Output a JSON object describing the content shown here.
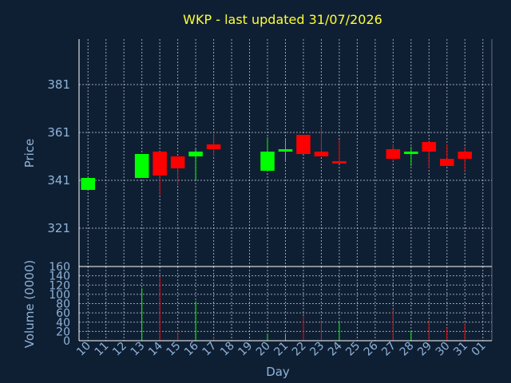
{
  "chart_data": [
    {
      "type": "candlestick",
      "title": "WKP - last updated 31/07/2026",
      "xlabel": "Day",
      "ylabel": "Price",
      "x_ticks": [
        "10",
        "11",
        "12",
        "13",
        "14",
        "15",
        "16",
        "17",
        "18",
        "19",
        "20",
        "21",
        "22",
        "23",
        "24",
        "25",
        "26",
        "27",
        "28",
        "29",
        "30",
        "31",
        "01"
      ],
      "y_ticks": [
        321,
        341,
        361,
        381
      ],
      "ylim": [
        305,
        400
      ],
      "grid": true,
      "colors": {
        "up": "#00ff00",
        "down": "#ff0000"
      },
      "candles": [
        {
          "day": "10",
          "open": 337,
          "close": 342,
          "high": 342,
          "low": 337
        },
        {
          "day": "13",
          "open": 342,
          "close": 352,
          "high": 352,
          "low": 342
        },
        {
          "day": "14",
          "open": 353,
          "close": 343,
          "high": 353,
          "low": 335
        },
        {
          "day": "15",
          "open": 351,
          "close": 346,
          "high": 351,
          "low": 339
        },
        {
          "day": "16",
          "open": 351,
          "close": 353,
          "high": 354,
          "low": 341
        },
        {
          "day": "17",
          "open": 356,
          "close": 354,
          "high": 361,
          "low": 351
        },
        {
          "day": "20",
          "open": 345,
          "close": 353,
          "high": 359,
          "low": 345
        },
        {
          "day": "21",
          "open": 353,
          "close": 354,
          "high": 358,
          "low": 349
        },
        {
          "day": "22",
          "open": 360,
          "close": 352,
          "high": 360,
          "low": 352
        },
        {
          "day": "23",
          "open": 353,
          "close": 351,
          "high": 363,
          "low": 351
        },
        {
          "day": "24",
          "open": 349,
          "close": 348,
          "high": 358,
          "low": 348
        },
        {
          "day": "27",
          "open": 354,
          "close": 350,
          "high": 356,
          "low": 349
        },
        {
          "day": "28",
          "open": 352,
          "close": 353,
          "high": 355,
          "low": 347
        },
        {
          "day": "29",
          "open": 357,
          "close": 353,
          "high": 357,
          "low": 346
        },
        {
          "day": "30",
          "open": 350,
          "close": 347,
          "high": 356,
          "low": 347
        },
        {
          "day": "31",
          "open": 353,
          "close": 350,
          "high": 355,
          "low": 345
        }
      ]
    },
    {
      "type": "bar",
      "xlabel": "Day",
      "ylabel": "Volume (0000)",
      "y_ticks": [
        0,
        20,
        40,
        60,
        80,
        100,
        120,
        140,
        160
      ],
      "ylim": [
        0,
        160
      ],
      "grid": true,
      "bars": [
        {
          "day": "10",
          "value": 2,
          "color": "#00ff00"
        },
        {
          "day": "13",
          "value": 113,
          "color": "#00ff00"
        },
        {
          "day": "14",
          "value": 138,
          "color": "#ff0000"
        },
        {
          "day": "15",
          "value": 22,
          "color": "#ff0000"
        },
        {
          "day": "16",
          "value": 85,
          "color": "#00ff00"
        },
        {
          "day": "17",
          "value": 8,
          "color": "#ff0000"
        },
        {
          "day": "20",
          "value": 14,
          "color": "#00ff00"
        },
        {
          "day": "21",
          "value": 16,
          "color": "#00ff00"
        },
        {
          "day": "22",
          "value": 52,
          "color": "#ff0000"
        },
        {
          "day": "23",
          "value": 42,
          "color": "#ff0000"
        },
        {
          "day": "24",
          "value": 40,
          "color": "#00ff00"
        },
        {
          "day": "27",
          "value": 68,
          "color": "#ff0000"
        },
        {
          "day": "28",
          "value": 20,
          "color": "#00ff00"
        },
        {
          "day": "29",
          "value": 42,
          "color": "#ff0000"
        },
        {
          "day": "30",
          "value": 28,
          "color": "#ff0000"
        },
        {
          "day": "31",
          "value": 38,
          "color": "#ff0000"
        }
      ]
    }
  ]
}
